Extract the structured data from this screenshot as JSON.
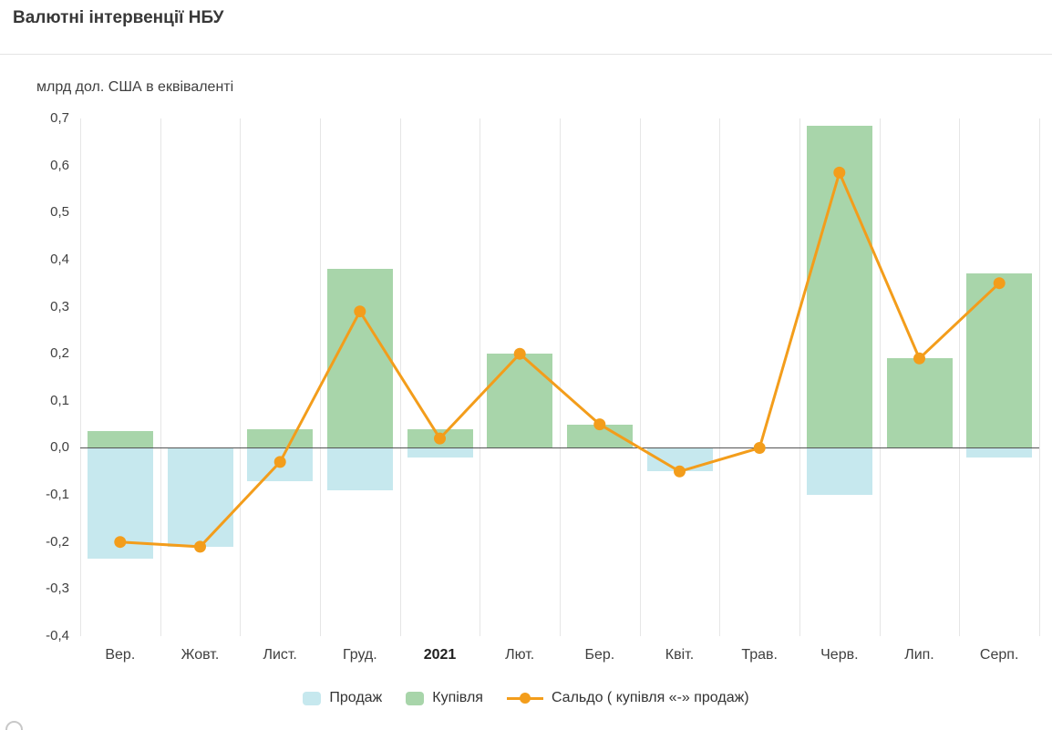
{
  "header": {
    "title": "Валютні інтервенції НБУ"
  },
  "chart_data": {
    "type": "bar",
    "subtype": "combo-column-line",
    "axis_title": "млрд дол. США в еквіваленті",
    "categories": [
      "Вер.",
      "Жовт.",
      "Лист.",
      "Груд.",
      "2021",
      "Лют.",
      "Бер.",
      "Квіт.",
      "Трав.",
      "Черв.",
      "Лип.",
      "Серп."
    ],
    "bold_category": "2021",
    "ylim": [
      -0.4,
      0.7
    ],
    "ytick_step": 0.1,
    "ytick_labels": [
      "0,7",
      "0,6",
      "0,5",
      "0,4",
      "0,3",
      "0,2",
      "0,1",
      "0,0",
      "-0,1",
      "-0,2",
      "-0,3",
      "-0,4"
    ],
    "grid": "vertical-only",
    "legend_position": "bottom-center",
    "series": [
      {
        "key": "prodazh",
        "name": "Продаж",
        "type": "bar",
        "color": "#c6e8ee",
        "values": [
          -0.235,
          -0.21,
          -0.07,
          -0.09,
          -0.02,
          0,
          0,
          -0.05,
          0,
          -0.1,
          0,
          -0.02
        ]
      },
      {
        "key": "kupivlia",
        "name": "Купівля",
        "type": "bar",
        "color": "#a8d5aa",
        "values": [
          0.035,
          0,
          0.04,
          0.38,
          0.04,
          0.2,
          0.05,
          0,
          0,
          0.685,
          0.19,
          0.37
        ]
      },
      {
        "key": "saldo",
        "name": "Сальдо ( купівля «-» продаж)",
        "type": "line",
        "color": "#f39d1b",
        "values": [
          -0.2,
          -0.21,
          -0.03,
          0.29,
          0.02,
          0.2,
          0.05,
          -0.05,
          0.0,
          0.585,
          0.19,
          0.35
        ]
      }
    ]
  }
}
